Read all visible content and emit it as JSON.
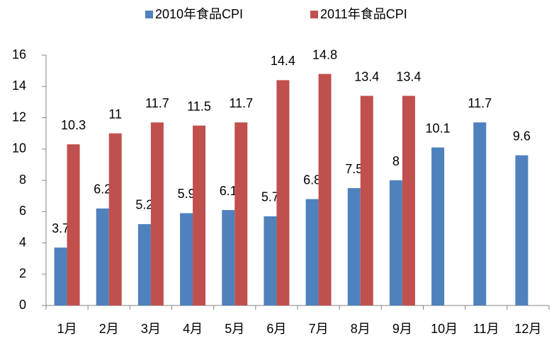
{
  "chart_data": {
    "type": "bar",
    "categories": [
      "1月",
      "2月",
      "3月",
      "4月",
      "5月",
      "6月",
      "7月",
      "8月",
      "9月",
      "10月",
      "11月",
      "12月"
    ],
    "series": [
      {
        "name": "2010年食品CPI",
        "color": "#4f81bd",
        "values": [
          3.7,
          6.2,
          5.2,
          5.9,
          6.1,
          5.7,
          6.8,
          7.5,
          8,
          10.1,
          11.7,
          9.6
        ]
      },
      {
        "name": "2011年食品CPI",
        "color": "#c0504d",
        "values": [
          10.3,
          11,
          11.7,
          11.5,
          11.7,
          14.4,
          14.8,
          13.4,
          13.4,
          null,
          null,
          null
        ]
      }
    ],
    "ylim": [
      0,
      16
    ],
    "yticks": [
      0,
      2,
      4,
      6,
      8,
      10,
      12,
      14,
      16
    ],
    "grid": false,
    "legend": "top"
  }
}
